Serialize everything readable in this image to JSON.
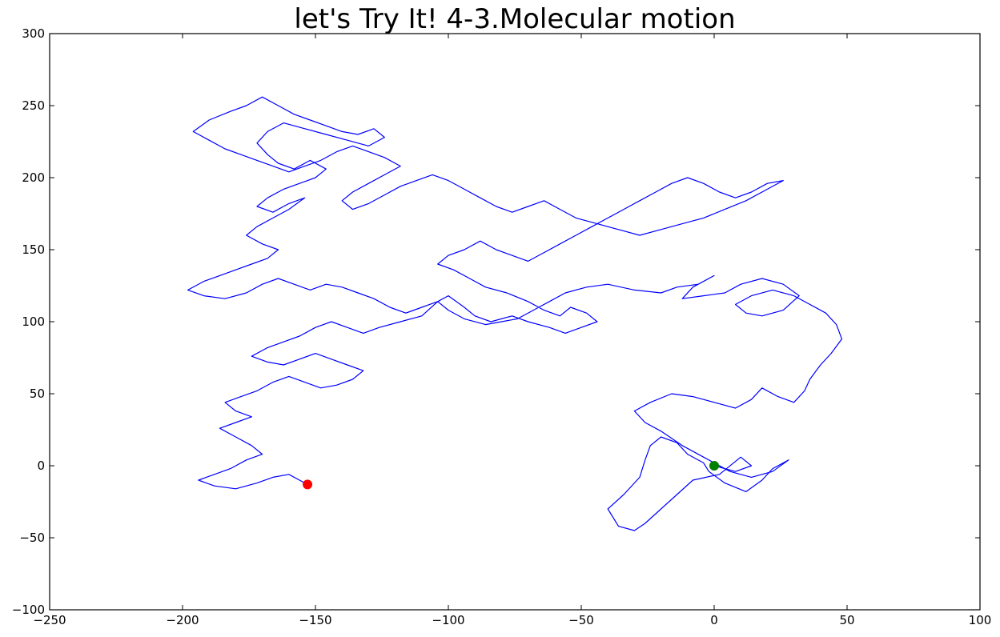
{
  "chart_data": {
    "type": "line",
    "title": "let's Try It! 4-3.Molecular motion",
    "xlabel": "",
    "ylabel": "",
    "xlim": [
      -250,
      100
    ],
    "ylim": [
      -100,
      300
    ],
    "x_ticks": [
      -250,
      -200,
      -150,
      -100,
      -50,
      0,
      50,
      100
    ],
    "y_ticks": [
      -100,
      -50,
      0,
      50,
      100,
      150,
      200,
      250,
      300
    ],
    "grid": false,
    "series": [
      {
        "color": "#0000ff",
        "points": [
          [
            0,
            0
          ],
          [
            8,
            -4
          ],
          [
            14,
            0
          ],
          [
            10,
            6
          ],
          [
            2,
            -6
          ],
          [
            -8,
            -10
          ],
          [
            -14,
            -20
          ],
          [
            -20,
            -30
          ],
          [
            -26,
            -40
          ],
          [
            -30,
            -45
          ],
          [
            -36,
            -42
          ],
          [
            -40,
            -30
          ],
          [
            -34,
            -20
          ],
          [
            -28,
            -8
          ],
          [
            -26,
            4
          ],
          [
            -24,
            14
          ],
          [
            -20,
            20
          ],
          [
            -14,
            16
          ],
          [
            -10,
            8
          ],
          [
            -4,
            2
          ],
          [
            -2,
            -4
          ],
          [
            4,
            -12
          ],
          [
            12,
            -18
          ],
          [
            18,
            -10
          ],
          [
            22,
            -2
          ],
          [
            28,
            4
          ],
          [
            22,
            -4
          ],
          [
            14,
            -8
          ],
          [
            6,
            -4
          ],
          [
            -4,
            6
          ],
          [
            -12,
            14
          ],
          [
            -20,
            24
          ],
          [
            -26,
            30
          ],
          [
            -30,
            38
          ],
          [
            -24,
            44
          ],
          [
            -16,
            50
          ],
          [
            -8,
            48
          ],
          [
            0,
            44
          ],
          [
            8,
            40
          ],
          [
            14,
            46
          ],
          [
            18,
            54
          ],
          [
            24,
            48
          ],
          [
            30,
            44
          ],
          [
            34,
            52
          ],
          [
            36,
            60
          ],
          [
            40,
            70
          ],
          [
            44,
            78
          ],
          [
            48,
            88
          ],
          [
            46,
            98
          ],
          [
            42,
            106
          ],
          [
            36,
            112
          ],
          [
            30,
            118
          ],
          [
            22,
            122
          ],
          [
            14,
            118
          ],
          [
            8,
            112
          ],
          [
            12,
            106
          ],
          [
            18,
            104
          ],
          [
            26,
            108
          ],
          [
            32,
            118
          ],
          [
            26,
            126
          ],
          [
            18,
            130
          ],
          [
            10,
            126
          ],
          [
            4,
            120
          ],
          [
            -4,
            118
          ],
          [
            -12,
            116
          ],
          [
            -8,
            124
          ],
          [
            0,
            132
          ],
          [
            -6,
            126
          ],
          [
            -14,
            124
          ],
          [
            -20,
            120
          ],
          [
            -30,
            122
          ],
          [
            -40,
            126
          ],
          [
            -48,
            124
          ],
          [
            -56,
            120
          ],
          [
            -62,
            114
          ],
          [
            -68,
            108
          ],
          [
            -74,
            102
          ],
          [
            -80,
            100
          ],
          [
            -86,
            98
          ],
          [
            -94,
            102
          ],
          [
            -100,
            108
          ],
          [
            -104,
            114
          ],
          [
            -100,
            118
          ],
          [
            -94,
            110
          ],
          [
            -90,
            104
          ],
          [
            -84,
            100
          ],
          [
            -76,
            104
          ],
          [
            -70,
            100
          ],
          [
            -62,
            96
          ],
          [
            -56,
            92
          ],
          [
            -50,
            96
          ],
          [
            -44,
            100
          ],
          [
            -48,
            106
          ],
          [
            -54,
            110
          ],
          [
            -58,
            104
          ],
          [
            -64,
            108
          ],
          [
            -70,
            114
          ],
          [
            -78,
            120
          ],
          [
            -86,
            124
          ],
          [
            -92,
            130
          ],
          [
            -98,
            136
          ],
          [
            -104,
            140
          ],
          [
            -100,
            146
          ],
          [
            -94,
            150
          ],
          [
            -88,
            156
          ],
          [
            -82,
            150
          ],
          [
            -76,
            146
          ],
          [
            -70,
            142
          ],
          [
            -64,
            148
          ],
          [
            -58,
            154
          ],
          [
            -52,
            160
          ],
          [
            -46,
            166
          ],
          [
            -40,
            172
          ],
          [
            -34,
            178
          ],
          [
            -28,
            184
          ],
          [
            -22,
            190
          ],
          [
            -16,
            196
          ],
          [
            -10,
            200
          ],
          [
            -4,
            196
          ],
          [
            2,
            190
          ],
          [
            8,
            186
          ],
          [
            14,
            190
          ],
          [
            20,
            196
          ],
          [
            26,
            198
          ],
          [
            20,
            192
          ],
          [
            12,
            184
          ],
          [
            4,
            178
          ],
          [
            -4,
            172
          ],
          [
            -12,
            168
          ],
          [
            -20,
            164
          ],
          [
            -28,
            160
          ],
          [
            -36,
            164
          ],
          [
            -44,
            168
          ],
          [
            -52,
            172
          ],
          [
            -58,
            178
          ],
          [
            -64,
            184
          ],
          [
            -70,
            180
          ],
          [
            -76,
            176
          ],
          [
            -82,
            180
          ],
          [
            -88,
            186
          ],
          [
            -94,
            192
          ],
          [
            -100,
            198
          ],
          [
            -106,
            202
          ],
          [
            -112,
            198
          ],
          [
            -118,
            194
          ],
          [
            -124,
            188
          ],
          [
            -130,
            182
          ],
          [
            -136,
            178
          ],
          [
            -140,
            184
          ],
          [
            -136,
            190
          ],
          [
            -130,
            196
          ],
          [
            -124,
            202
          ],
          [
            -118,
            208
          ],
          [
            -124,
            214
          ],
          [
            -130,
            218
          ],
          [
            -136,
            222
          ],
          [
            -142,
            218
          ],
          [
            -148,
            212
          ],
          [
            -154,
            208
          ],
          [
            -160,
            204
          ],
          [
            -166,
            208
          ],
          [
            -172,
            212
          ],
          [
            -178,
            216
          ],
          [
            -184,
            220
          ],
          [
            -190,
            226
          ],
          [
            -196,
            232
          ],
          [
            -190,
            240
          ],
          [
            -182,
            246
          ],
          [
            -176,
            250
          ],
          [
            -170,
            256
          ],
          [
            -164,
            250
          ],
          [
            -158,
            244
          ],
          [
            -152,
            240
          ],
          [
            -146,
            236
          ],
          [
            -140,
            232
          ],
          [
            -134,
            230
          ],
          [
            -128,
            234
          ],
          [
            -124,
            228
          ],
          [
            -130,
            222
          ],
          [
            -138,
            226
          ],
          [
            -146,
            230
          ],
          [
            -154,
            234
          ],
          [
            -162,
            238
          ],
          [
            -168,
            232
          ],
          [
            -172,
            224
          ],
          [
            -168,
            216
          ],
          [
            -164,
            210
          ],
          [
            -158,
            206
          ],
          [
            -152,
            212
          ],
          [
            -146,
            206
          ],
          [
            -150,
            200
          ],
          [
            -156,
            196
          ],
          [
            -162,
            192
          ],
          [
            -168,
            186
          ],
          [
            -172,
            180
          ],
          [
            -166,
            176
          ],
          [
            -160,
            182
          ],
          [
            -154,
            186
          ],
          [
            -160,
            178
          ],
          [
            -166,
            172
          ],
          [
            -172,
            166
          ],
          [
            -176,
            160
          ],
          [
            -170,
            154
          ],
          [
            -164,
            150
          ],
          [
            -168,
            144
          ],
          [
            -174,
            140
          ],
          [
            -180,
            136
          ],
          [
            -186,
            132
          ],
          [
            -192,
            128
          ],
          [
            -198,
            122
          ],
          [
            -192,
            118
          ],
          [
            -184,
            116
          ],
          [
            -176,
            120
          ],
          [
            -170,
            126
          ],
          [
            -164,
            130
          ],
          [
            -158,
            126
          ],
          [
            -152,
            122
          ],
          [
            -146,
            126
          ],
          [
            -140,
            124
          ],
          [
            -134,
            120
          ],
          [
            -128,
            116
          ],
          [
            -122,
            110
          ],
          [
            -116,
            106
          ],
          [
            -110,
            110
          ],
          [
            -104,
            114
          ],
          [
            -110,
            104
          ],
          [
            -118,
            100
          ],
          [
            -126,
            96
          ],
          [
            -132,
            92
          ],
          [
            -138,
            96
          ],
          [
            -144,
            100
          ],
          [
            -150,
            96
          ],
          [
            -156,
            90
          ],
          [
            -162,
            86
          ],
          [
            -168,
            82
          ],
          [
            -174,
            76
          ],
          [
            -168,
            72
          ],
          [
            -162,
            70
          ],
          [
            -156,
            74
          ],
          [
            -150,
            78
          ],
          [
            -144,
            74
          ],
          [
            -138,
            70
          ],
          [
            -132,
            66
          ],
          [
            -136,
            60
          ],
          [
            -142,
            56
          ],
          [
            -148,
            54
          ],
          [
            -154,
            58
          ],
          [
            -160,
            62
          ],
          [
            -166,
            58
          ],
          [
            -172,
            52
          ],
          [
            -178,
            48
          ],
          [
            -184,
            44
          ],
          [
            -180,
            38
          ],
          [
            -174,
            34
          ],
          [
            -180,
            30
          ],
          [
            -186,
            26
          ],
          [
            -180,
            20
          ],
          [
            -174,
            14
          ],
          [
            -170,
            8
          ],
          [
            -176,
            4
          ],
          [
            -182,
            -2
          ],
          [
            -188,
            -6
          ],
          [
            -194,
            -10
          ],
          [
            -188,
            -14
          ],
          [
            -180,
            -16
          ],
          [
            -172,
            -12
          ],
          [
            -166,
            -8
          ],
          [
            -160,
            -6
          ],
          [
            -156,
            -10
          ],
          [
            -153,
            -13
          ]
        ]
      }
    ],
    "markers": [
      {
        "x": 0,
        "y": 0,
        "color": "#008000"
      },
      {
        "x": -153,
        "y": -13,
        "color": "#ff0000"
      }
    ]
  }
}
